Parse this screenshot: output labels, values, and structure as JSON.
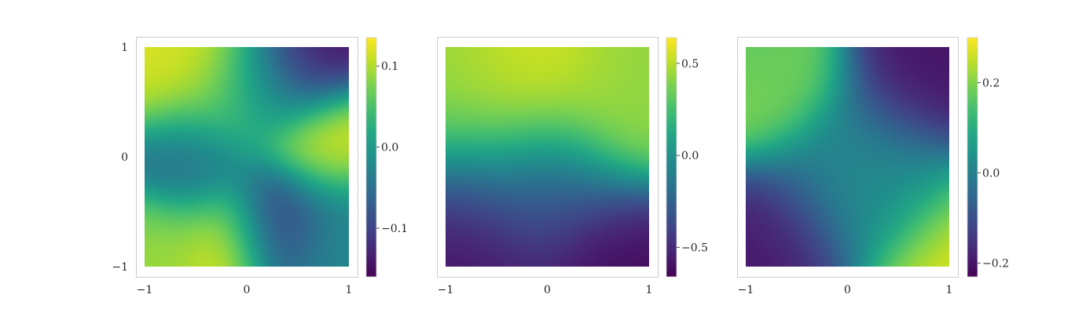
{
  "chart_data": [
    {
      "type": "heatmap",
      "title": "",
      "xlabel": "",
      "ylabel": "",
      "xlim": [
        -1,
        1
      ],
      "ylim": [
        -1,
        1
      ],
      "grid": false,
      "colormap": "viridis",
      "x_ticks": [
        {
          "value": -1,
          "label": "−1"
        },
        {
          "value": 0,
          "label": "0"
        },
        {
          "value": 1,
          "label": "1"
        }
      ],
      "y_ticks": [
        {
          "value": 1,
          "label": "1"
        },
        {
          "value": 0,
          "label": "0"
        },
        {
          "value": -1,
          "label": "−1"
        }
      ],
      "colorbar": {
        "range": [
          -0.16,
          0.135
        ],
        "ticks": [
          {
            "value": 0.1,
            "label": "0.1"
          },
          {
            "value": 0.0,
            "label": "0.0"
          },
          {
            "value": -0.1,
            "label": "−0.1"
          }
        ]
      },
      "features": [
        {
          "x": -0.75,
          "y": 0.85,
          "v": 0.12,
          "s": 0.35
        },
        {
          "x": -0.2,
          "y": 0.6,
          "v": 0.1,
          "s": 0.4
        },
        {
          "x": 0.5,
          "y": 0.85,
          "v": -0.15,
          "s": 0.3
        },
        {
          "x": 0.15,
          "y": 0.6,
          "v": -0.03,
          "s": 0.3
        },
        {
          "x": 0.7,
          "y": 0.1,
          "v": 0.12,
          "s": 0.3
        },
        {
          "x": -0.5,
          "y": -0.05,
          "v": -0.07,
          "s": 0.35
        },
        {
          "x": -0.2,
          "y": -0.7,
          "v": 0.13,
          "s": 0.3
        },
        {
          "x": -0.85,
          "y": -0.8,
          "v": 0.09,
          "s": 0.3
        },
        {
          "x": 0.3,
          "y": -0.55,
          "v": -0.14,
          "s": 0.3
        },
        {
          "x": 0.75,
          "y": -0.7,
          "v": -0.02,
          "s": 0.35
        }
      ]
    },
    {
      "type": "heatmap",
      "title": "",
      "xlabel": "",
      "ylabel": "",
      "xlim": [
        -1,
        1
      ],
      "ylim": [
        -1,
        1
      ],
      "grid": false,
      "colormap": "viridis",
      "x_ticks": [
        {
          "value": -1,
          "label": "−1"
        },
        {
          "value": 0,
          "label": "0"
        },
        {
          "value": 1,
          "label": "1"
        }
      ],
      "y_ticks": [],
      "colorbar": {
        "range": [
          -0.66,
          0.64
        ],
        "ticks": [
          {
            "value": 0.5,
            "label": "0.5"
          },
          {
            "value": 0.0,
            "label": "0.0"
          },
          {
            "value": -0.5,
            "label": "−0.5"
          }
        ]
      },
      "features": [
        {
          "x": -0.8,
          "y": 0.6,
          "v": 0.42,
          "s": 0.5
        },
        {
          "x": -0.2,
          "y": 0.6,
          "v": 0.62,
          "s": 0.45
        },
        {
          "x": 0.75,
          "y": 0.55,
          "v": 0.42,
          "s": 0.4
        },
        {
          "x": 0.0,
          "y": 0.15,
          "v": 0.45,
          "s": 0.5
        },
        {
          "x": -0.6,
          "y": -0.4,
          "v": -0.45,
          "s": 0.45
        },
        {
          "x": 0.0,
          "y": -0.2,
          "v": -0.62,
          "s": 0.35
        },
        {
          "x": 0.5,
          "y": -0.8,
          "v": -0.63,
          "s": 0.4
        },
        {
          "x": -0.7,
          "y": -0.9,
          "v": -0.62,
          "s": 0.4
        }
      ]
    },
    {
      "type": "heatmap",
      "title": "",
      "xlabel": "",
      "ylabel": "",
      "xlim": [
        -1,
        1
      ],
      "ylim": [
        -1,
        1
      ],
      "grid": false,
      "colormap": "viridis",
      "x_ticks": [
        {
          "value": -1,
          "label": "−1"
        },
        {
          "value": 0,
          "label": "0"
        },
        {
          "value": 1,
          "label": "1"
        }
      ],
      "y_ticks": [],
      "colorbar": {
        "range": [
          -0.23,
          0.3
        ],
        "ticks": [
          {
            "value": 0.2,
            "label": "0.2"
          },
          {
            "value": 0.0,
            "label": "0.0"
          },
          {
            "value": -0.2,
            "label": "−0.2"
          }
        ]
      },
      "features": [
        {
          "x": -0.6,
          "y": 0.6,
          "v": 0.22,
          "s": 0.4
        },
        {
          "x": -0.75,
          "y": 0.85,
          "v": 0.15,
          "s": 0.3
        },
        {
          "x": 0.6,
          "y": 0.75,
          "v": -0.2,
          "s": 0.4
        },
        {
          "x": 0.2,
          "y": 0.05,
          "v": -0.06,
          "s": 0.4
        },
        {
          "x": 0.1,
          "y": -0.15,
          "v": 0.1,
          "s": 0.3
        },
        {
          "x": -0.7,
          "y": -0.7,
          "v": -0.2,
          "s": 0.35
        },
        {
          "x": 0.9,
          "y": -0.85,
          "v": 0.28,
          "s": 0.35
        },
        {
          "x": 0.5,
          "y": -0.4,
          "v": 0.06,
          "s": 0.35
        },
        {
          "x": -0.2,
          "y": -0.3,
          "v": -0.05,
          "s": 0.4
        }
      ]
    }
  ]
}
